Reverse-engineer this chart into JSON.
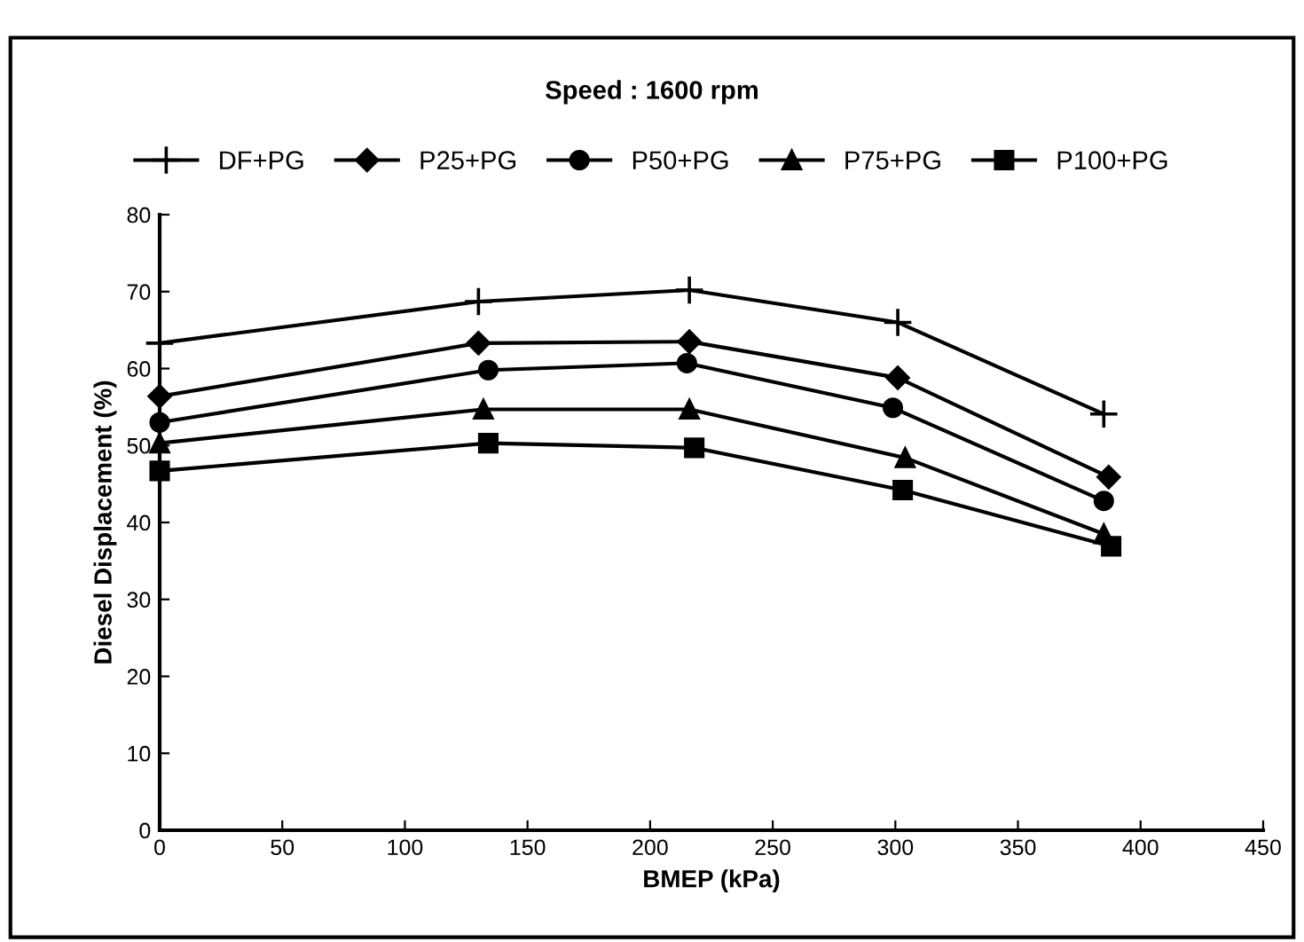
{
  "chart_data": {
    "type": "line",
    "title": "Speed : 1600 rpm",
    "xlabel": "BMEP (kPa)",
    "ylabel": "Diesel Displacement (%)",
    "series": [
      {
        "name": "DF+PG",
        "color": "#000000",
        "marker": "cross",
        "x": [
          0,
          130,
          216,
          301,
          385
        ],
        "values": [
          63.3,
          68.7,
          70.2,
          66.0,
          54.1
        ]
      },
      {
        "name": "P25+PG",
        "color": "#000000",
        "marker": "diamond",
        "x": [
          0,
          130,
          216,
          301,
          387
        ],
        "values": [
          56.4,
          63.3,
          63.5,
          58.8,
          45.9
        ]
      },
      {
        "name": "P50+PG",
        "color": "#000000",
        "marker": "circle",
        "x": [
          0,
          134,
          215,
          299,
          385
        ],
        "values": [
          53.0,
          59.8,
          60.7,
          54.9,
          42.8
        ]
      },
      {
        "name": "P75+PG",
        "color": "#000000",
        "marker": "triangle",
        "x": [
          0,
          132,
          216,
          304,
          385
        ],
        "values": [
          50.3,
          54.7,
          54.7,
          48.4,
          38.5
        ]
      },
      {
        "name": "P100+PG",
        "color": "#000000",
        "marker": "square",
        "x": [
          0,
          134,
          218,
          303,
          388
        ],
        "values": [
          46.7,
          50.3,
          49.7,
          44.2,
          36.9
        ]
      }
    ],
    "xlim": [
      0,
      450
    ],
    "xticks": [
      0,
      50,
      100,
      150,
      200,
      250,
      300,
      350,
      400,
      450
    ],
    "ylim": [
      0,
      80
    ],
    "yticks": [
      0,
      10,
      20,
      30,
      40,
      50,
      60,
      70,
      80
    ],
    "grid": false,
    "legend": "top",
    "line_style": "solid"
  }
}
